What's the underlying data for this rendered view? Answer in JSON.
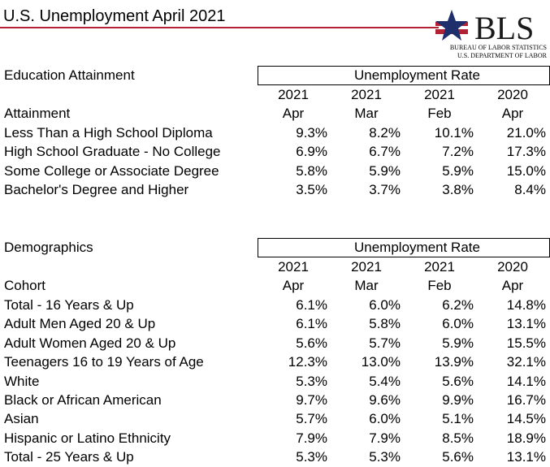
{
  "header": {
    "title": "U.S. Unemployment April 2021",
    "logo": {
      "mark": "BLS",
      "line1": "BUREAU OF LABOR STATISTICS",
      "line2": "U.S. DEPARTMENT OF LABOR"
    }
  },
  "sections": [
    {
      "title": "Education Attainment",
      "group": "Unemployment Rate",
      "years": [
        "2021",
        "2021",
        "2021",
        "2020"
      ],
      "months": [
        "Apr",
        "Mar",
        "Feb",
        "Apr"
      ],
      "row_header": "Attainment",
      "rows": [
        {
          "label": "Less Than a High School Diploma",
          "values": [
            "9.3%",
            "8.2%",
            "10.1%",
            "21.0%"
          ]
        },
        {
          "label": "High School Graduate - No College",
          "values": [
            "6.9%",
            "6.7%",
            "7.2%",
            "17.3%"
          ]
        },
        {
          "label": "Some College or Associate Degree",
          "values": [
            "5.8%",
            "5.9%",
            "5.9%",
            "15.0%"
          ]
        },
        {
          "label": "Bachelor's Degree and Higher",
          "values": [
            "3.5%",
            "3.7%",
            "3.8%",
            "8.4%"
          ]
        }
      ]
    },
    {
      "title": "Demographics",
      "group": "Unemployment Rate",
      "years": [
        "2021",
        "2021",
        "2021",
        "2020"
      ],
      "months": [
        "Apr",
        "Mar",
        "Feb",
        "Apr"
      ],
      "row_header": "Cohort",
      "rows": [
        {
          "label": "Total - 16 Years & Up",
          "values": [
            "6.1%",
            "6.0%",
            "6.2%",
            "14.8%"
          ]
        },
        {
          "label": "Adult Men Aged 20 & Up",
          "values": [
            "6.1%",
            "5.8%",
            "6.0%",
            "13.1%"
          ]
        },
        {
          "label": "Adult Women Aged 20 & Up",
          "values": [
            "5.6%",
            "5.7%",
            "5.9%",
            "15.5%"
          ]
        },
        {
          "label": "Teenagers 16 to 19 Years of Age",
          "values": [
            "12.3%",
            "13.0%",
            "13.9%",
            "32.1%"
          ]
        },
        {
          "label": "White",
          "values": [
            "5.3%",
            "5.4%",
            "5.6%",
            "14.1%"
          ]
        },
        {
          "label": "Black or African American",
          "values": [
            "9.7%",
            "9.6%",
            "9.9%",
            "16.7%"
          ]
        },
        {
          "label": "Asian",
          "values": [
            "5.7%",
            "6.0%",
            "5.1%",
            "14.5%"
          ]
        },
        {
          "label": "Hispanic or Latino Ethnicity",
          "values": [
            "7.9%",
            "7.9%",
            "8.5%",
            "18.9%"
          ]
        },
        {
          "label": "Total - 25 Years & Up",
          "values": [
            "5.3%",
            "5.3%",
            "5.6%",
            "13.1%"
          ]
        }
      ]
    }
  ]
}
